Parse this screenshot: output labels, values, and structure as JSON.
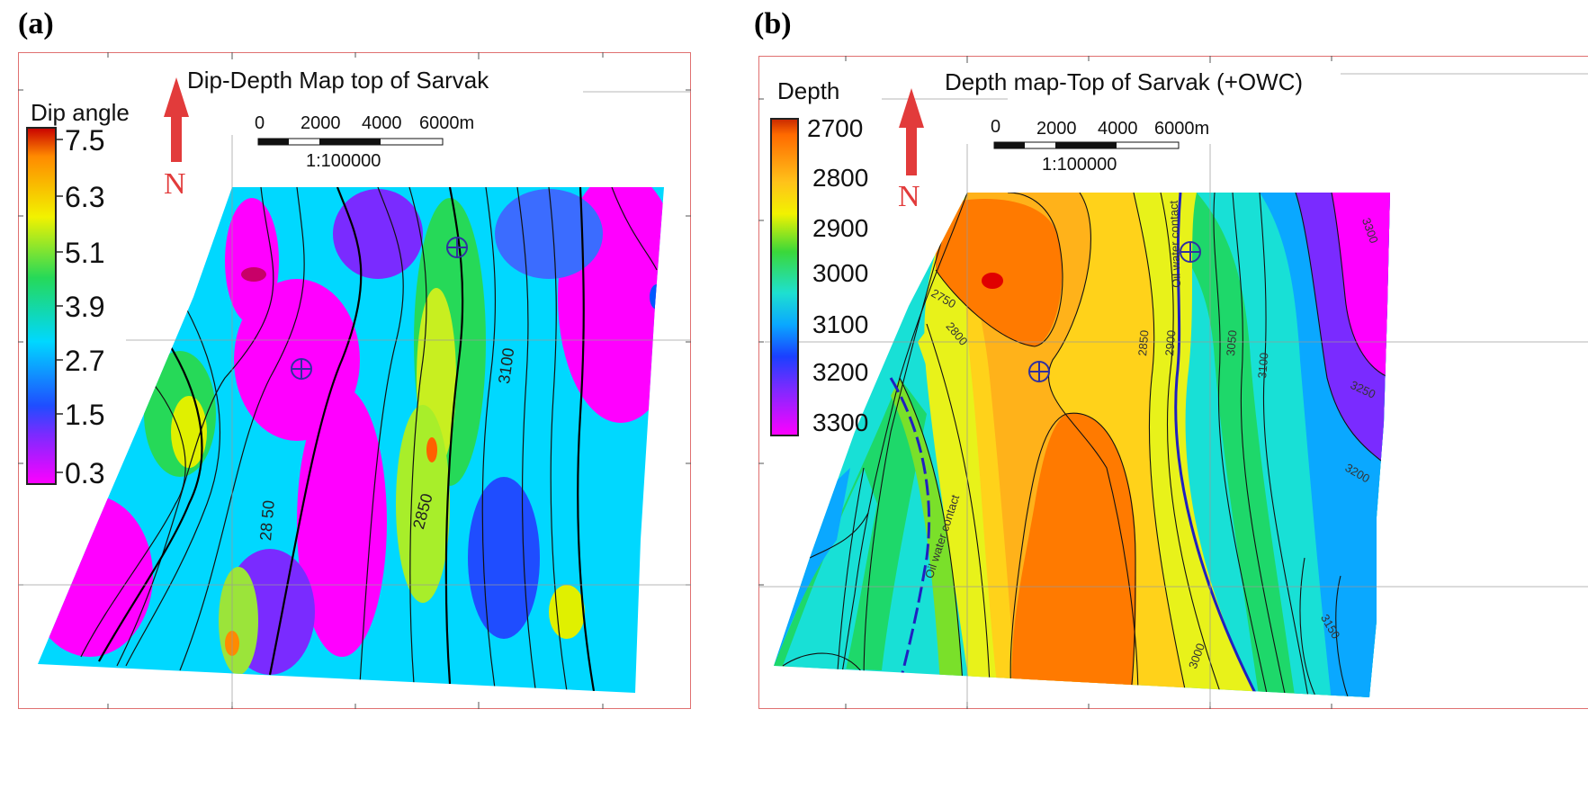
{
  "panels": [
    {
      "letter": "(a)",
      "title": "Dip-Depth Map top of Sarvak",
      "legend_title": "Dip angle",
      "legend_ticks": [
        "7.5",
        "6.3",
        "5.1",
        "3.9",
        "2.7",
        "1.5",
        "0.3"
      ],
      "north": "N",
      "scale_ticks": [
        "0",
        "2000",
        "4000",
        "6000m"
      ],
      "scale_ratio": "1:100000",
      "contour_labels": [
        "3100",
        "28 50",
        "2850"
      ]
    },
    {
      "letter": "(b)",
      "title": "Depth map-Top of Sarvak (+OWC)",
      "legend_title": "Depth",
      "legend_ticks": [
        "2700",
        "2800",
        "2900",
        "3000",
        "3100",
        "3200",
        "3300"
      ],
      "north": "N",
      "scale_ticks": [
        "0",
        "2000",
        "4000",
        "6000m"
      ],
      "scale_ratio": "1:100000",
      "owc_label": "Oil water contact",
      "contour_labels": [
        "2750",
        "2800",
        "2850",
        "2900",
        "3000",
        "3050",
        "3100",
        "3150",
        "3200",
        "3250",
        "3300"
      ]
    }
  ],
  "colors": {
    "frame": "#e07070",
    "north_arrow": "#e23b3b",
    "dip_ramp": [
      "#ff00ff",
      "#7a2bff",
      "#1f4dff",
      "#00d8ff",
      "#26d958",
      "#f2f200",
      "#ff8a00",
      "#c80000"
    ],
    "depth_ramp": [
      "#ff5a00",
      "#ff9f1a",
      "#ffd21a",
      "#e8f21a",
      "#7ae02a",
      "#1ed86a",
      "#18e0d6",
      "#0aa8ff",
      "#1a55ff",
      "#7a2bff",
      "#ff00ff"
    ],
    "owc_line": "#2020c0"
  }
}
